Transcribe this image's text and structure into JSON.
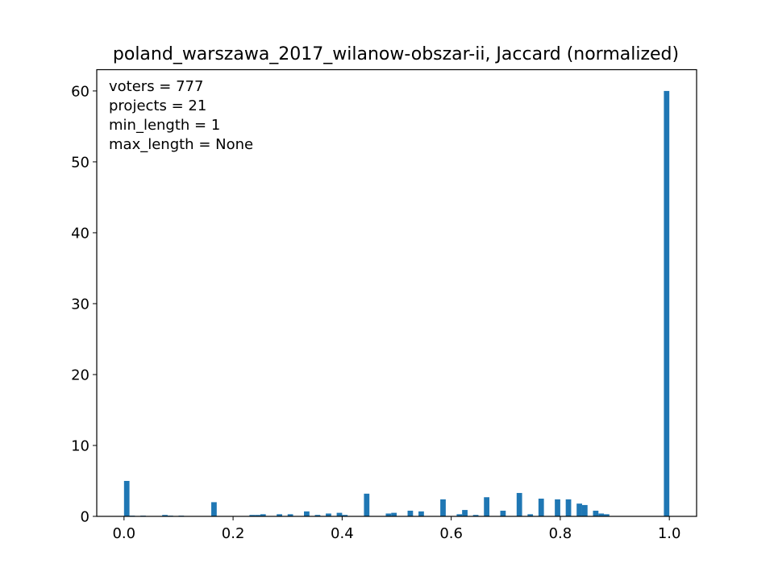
{
  "chart_data": {
    "type": "bar",
    "title": "poland_warszawa_2017_wilanow-obszar-ii, Jaccard (normalized)",
    "xlabel": "",
    "ylabel": "",
    "xlim": [
      -0.05,
      1.05
    ],
    "ylim": [
      0,
      63
    ],
    "bar_width": 0.01,
    "color": "#1f77b4",
    "x_ticks": [
      0.0,
      0.2,
      0.4,
      0.6,
      0.8,
      1.0
    ],
    "x_tick_labels": [
      "0.0",
      "0.2",
      "0.4",
      "0.6",
      "0.8",
      "1.0"
    ],
    "y_ticks": [
      0,
      10,
      20,
      30,
      40,
      50,
      60
    ],
    "y_tick_labels": [
      "0",
      "10",
      "20",
      "30",
      "40",
      "50",
      "60"
    ],
    "annotations": [
      "voters = 777",
      "projects = 21",
      "min_length = 1",
      "max_length = None"
    ],
    "annotation_placement": "top-left",
    "grid": false,
    "x": [
      0.005,
      0.015,
      0.035,
      0.075,
      0.085,
      0.105,
      0.165,
      0.235,
      0.245,
      0.255,
      0.285,
      0.305,
      0.335,
      0.355,
      0.375,
      0.395,
      0.405,
      0.445,
      0.485,
      0.495,
      0.525,
      0.545,
      0.585,
      0.615,
      0.625,
      0.645,
      0.665,
      0.695,
      0.725,
      0.745,
      0.765,
      0.795,
      0.815,
      0.835,
      0.845,
      0.865,
      0.875,
      0.885,
      0.995
    ],
    "values": [
      5.0,
      0.1,
      0.1,
      0.2,
      0.1,
      0.1,
      2.0,
      0.2,
      0.2,
      0.3,
      0.3,
      0.3,
      0.7,
      0.2,
      0.4,
      0.5,
      0.2,
      3.2,
      0.4,
      0.5,
      0.8,
      0.7,
      2.4,
      0.3,
      0.9,
      0.2,
      2.7,
      0.8,
      3.3,
      0.3,
      2.5,
      2.4,
      2.4,
      1.8,
      1.6,
      0.8,
      0.4,
      0.3,
      60.0
    ]
  }
}
